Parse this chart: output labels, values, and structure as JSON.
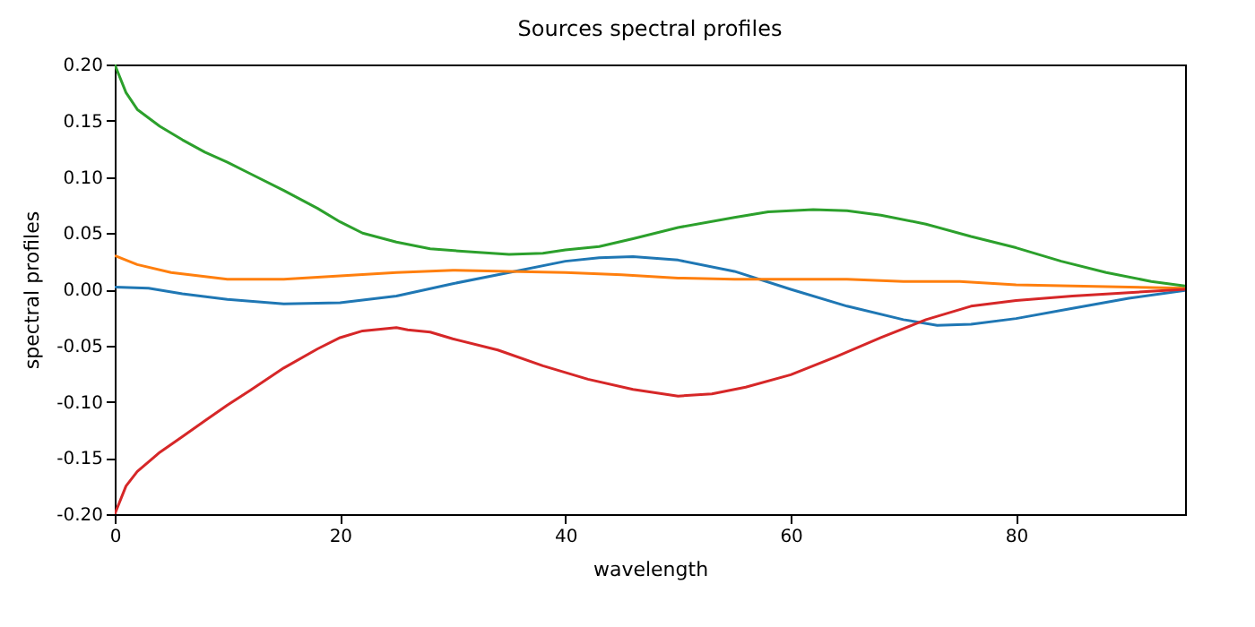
{
  "chart_data": {
    "type": "line",
    "title": "Sources spectral profiles",
    "xlabel": "wavelength",
    "ylabel": "spectral profiles",
    "xlim": [
      0,
      95
    ],
    "xticks": [
      0,
      20,
      40,
      60,
      80
    ],
    "ylim": [
      -0.2,
      0.2
    ],
    "yticks": [
      {
        "value": -0.2,
        "label": "-0.20"
      },
      {
        "value": -0.15,
        "label": "-0.15"
      },
      {
        "value": -0.1,
        "label": "-0.10"
      },
      {
        "value": -0.05,
        "label": "-0.05"
      },
      {
        "value": 0,
        "label": "0.00"
      },
      {
        "value": 0.05,
        "label": "0.05"
      },
      {
        "value": 0.1,
        "label": "0.10"
      },
      {
        "value": 0.15,
        "label": "0.15"
      },
      {
        "value": 0.2,
        "label": "0.20"
      }
    ],
    "grid": false,
    "marker": "none",
    "line_style": "solid",
    "series": [
      {
        "color": "#1f77b4",
        "x": [
          0,
          3,
          6,
          10,
          15,
          20,
          25,
          30,
          35,
          40,
          43,
          46,
          50,
          55,
          60,
          65,
          70,
          73,
          76,
          80,
          85,
          90,
          95
        ],
        "values": [
          0.002,
          0.001,
          -0.004,
          -0.009,
          -0.013,
          -0.012,
          -0.006,
          0.005,
          0.015,
          0.025,
          0.028,
          0.029,
          0.026,
          0.016,
          0.0,
          -0.015,
          -0.027,
          -0.032,
          -0.031,
          -0.026,
          -0.017,
          -0.008,
          -0.001
        ]
      },
      {
        "color": "#ff7f0e",
        "x": [
          0,
          2,
          5,
          10,
          15,
          20,
          25,
          30,
          35,
          40,
          45,
          50,
          55,
          60,
          65,
          70,
          75,
          80,
          85,
          90,
          95
        ],
        "values": [
          0.03,
          0.022,
          0.015,
          0.009,
          0.009,
          0.012,
          0.015,
          0.017,
          0.016,
          0.015,
          0.013,
          0.01,
          0.009,
          0.009,
          0.009,
          0.007,
          0.007,
          0.004,
          0.003,
          0.002,
          0.001
        ]
      },
      {
        "color": "#2ca02c",
        "x": [
          0,
          1,
          2,
          4,
          6,
          8,
          10,
          12,
          15,
          18,
          20,
          22,
          25,
          28,
          32,
          35,
          38,
          40,
          43,
          46,
          50,
          55,
          58,
          62,
          65,
          68,
          72,
          76,
          80,
          84,
          88,
          92,
          95
        ],
        "values": [
          0.2,
          0.175,
          0.16,
          0.145,
          0.133,
          0.122,
          0.113,
          0.103,
          0.088,
          0.072,
          0.06,
          0.05,
          0.042,
          0.036,
          0.033,
          0.031,
          0.032,
          0.035,
          0.038,
          0.045,
          0.055,
          0.064,
          0.069,
          0.071,
          0.07,
          0.066,
          0.058,
          0.047,
          0.037,
          0.025,
          0.015,
          0.007,
          0.003
        ]
      },
      {
        "color": "#d62728",
        "x": [
          0,
          1,
          2,
          4,
          6,
          8,
          10,
          12,
          15,
          18,
          20,
          22,
          25,
          26,
          28,
          30,
          34,
          38,
          42,
          46,
          50,
          53,
          56,
          60,
          64,
          68,
          72,
          76,
          80,
          85,
          90,
          95
        ],
        "values": [
          -0.2,
          -0.175,
          -0.162,
          -0.145,
          -0.131,
          -0.117,
          -0.103,
          -0.09,
          -0.07,
          -0.053,
          -0.043,
          -0.037,
          -0.034,
          -0.036,
          -0.038,
          -0.044,
          -0.054,
          -0.068,
          -0.08,
          -0.089,
          -0.095,
          -0.093,
          -0.087,
          -0.076,
          -0.06,
          -0.043,
          -0.027,
          -0.015,
          -0.01,
          -0.006,
          -0.003,
          0
        ]
      }
    ]
  }
}
